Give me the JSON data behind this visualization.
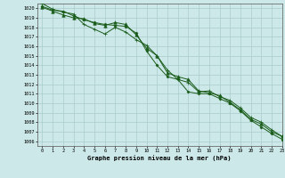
{
  "title": "Graphe pression niveau de la mer (hPa)",
  "background_color": "#cce8e8",
  "grid_color": "#aacccc",
  "line_color": "#1a5c1a",
  "xlim": [
    -0.5,
    23
  ],
  "ylim": [
    1005.5,
    1020.5
  ],
  "xticks": [
    0,
    1,
    2,
    3,
    4,
    5,
    6,
    7,
    8,
    9,
    10,
    11,
    12,
    13,
    14,
    15,
    16,
    17,
    18,
    19,
    20,
    21,
    22,
    23
  ],
  "yticks": [
    1006,
    1007,
    1008,
    1009,
    1010,
    1011,
    1012,
    1013,
    1014,
    1015,
    1016,
    1017,
    1018,
    1019,
    1020
  ],
  "series": [
    [
      1020.2,
      1019.8,
      1019.7,
      1019.2,
      1018.8,
      1018.5,
      1018.3,
      1018.2,
      1018.1,
      1017.4,
      1015.5,
      1014.0,
      1012.8,
      1012.5,
      1011.2,
      1011.0,
      1011.0,
      1010.5,
      1010.0,
      1009.2,
      1008.2,
      1007.5,
      1006.8,
      1006.2
    ],
    [
      1020.5,
      1019.9,
      1019.6,
      1019.4,
      1018.3,
      1017.8,
      1017.3,
      1018.0,
      1017.5,
      1016.7,
      1016.1,
      1015.0,
      1013.5,
      1012.5,
      1012.2,
      1011.2,
      1011.3,
      1010.7,
      1010.3,
      1009.5,
      1008.5,
      1008.0,
      1007.2,
      1006.5
    ],
    [
      1020.1,
      1019.7,
      1019.3,
      1019.0,
      1018.9,
      1018.4,
      1018.2,
      1018.5,
      1018.3,
      1017.2,
      1015.8,
      1015.0,
      1013.2,
      1012.8,
      1012.5,
      1011.3,
      1011.1,
      1010.8,
      1010.1,
      1009.3,
      1008.3,
      1007.8,
      1007.0,
      1006.5
    ]
  ],
  "markers": [
    "D",
    "+",
    "^"
  ],
  "marker_sizes": [
    1.5,
    3.5,
    2.5
  ],
  "linewidths": [
    0.7,
    0.7,
    0.7
  ]
}
